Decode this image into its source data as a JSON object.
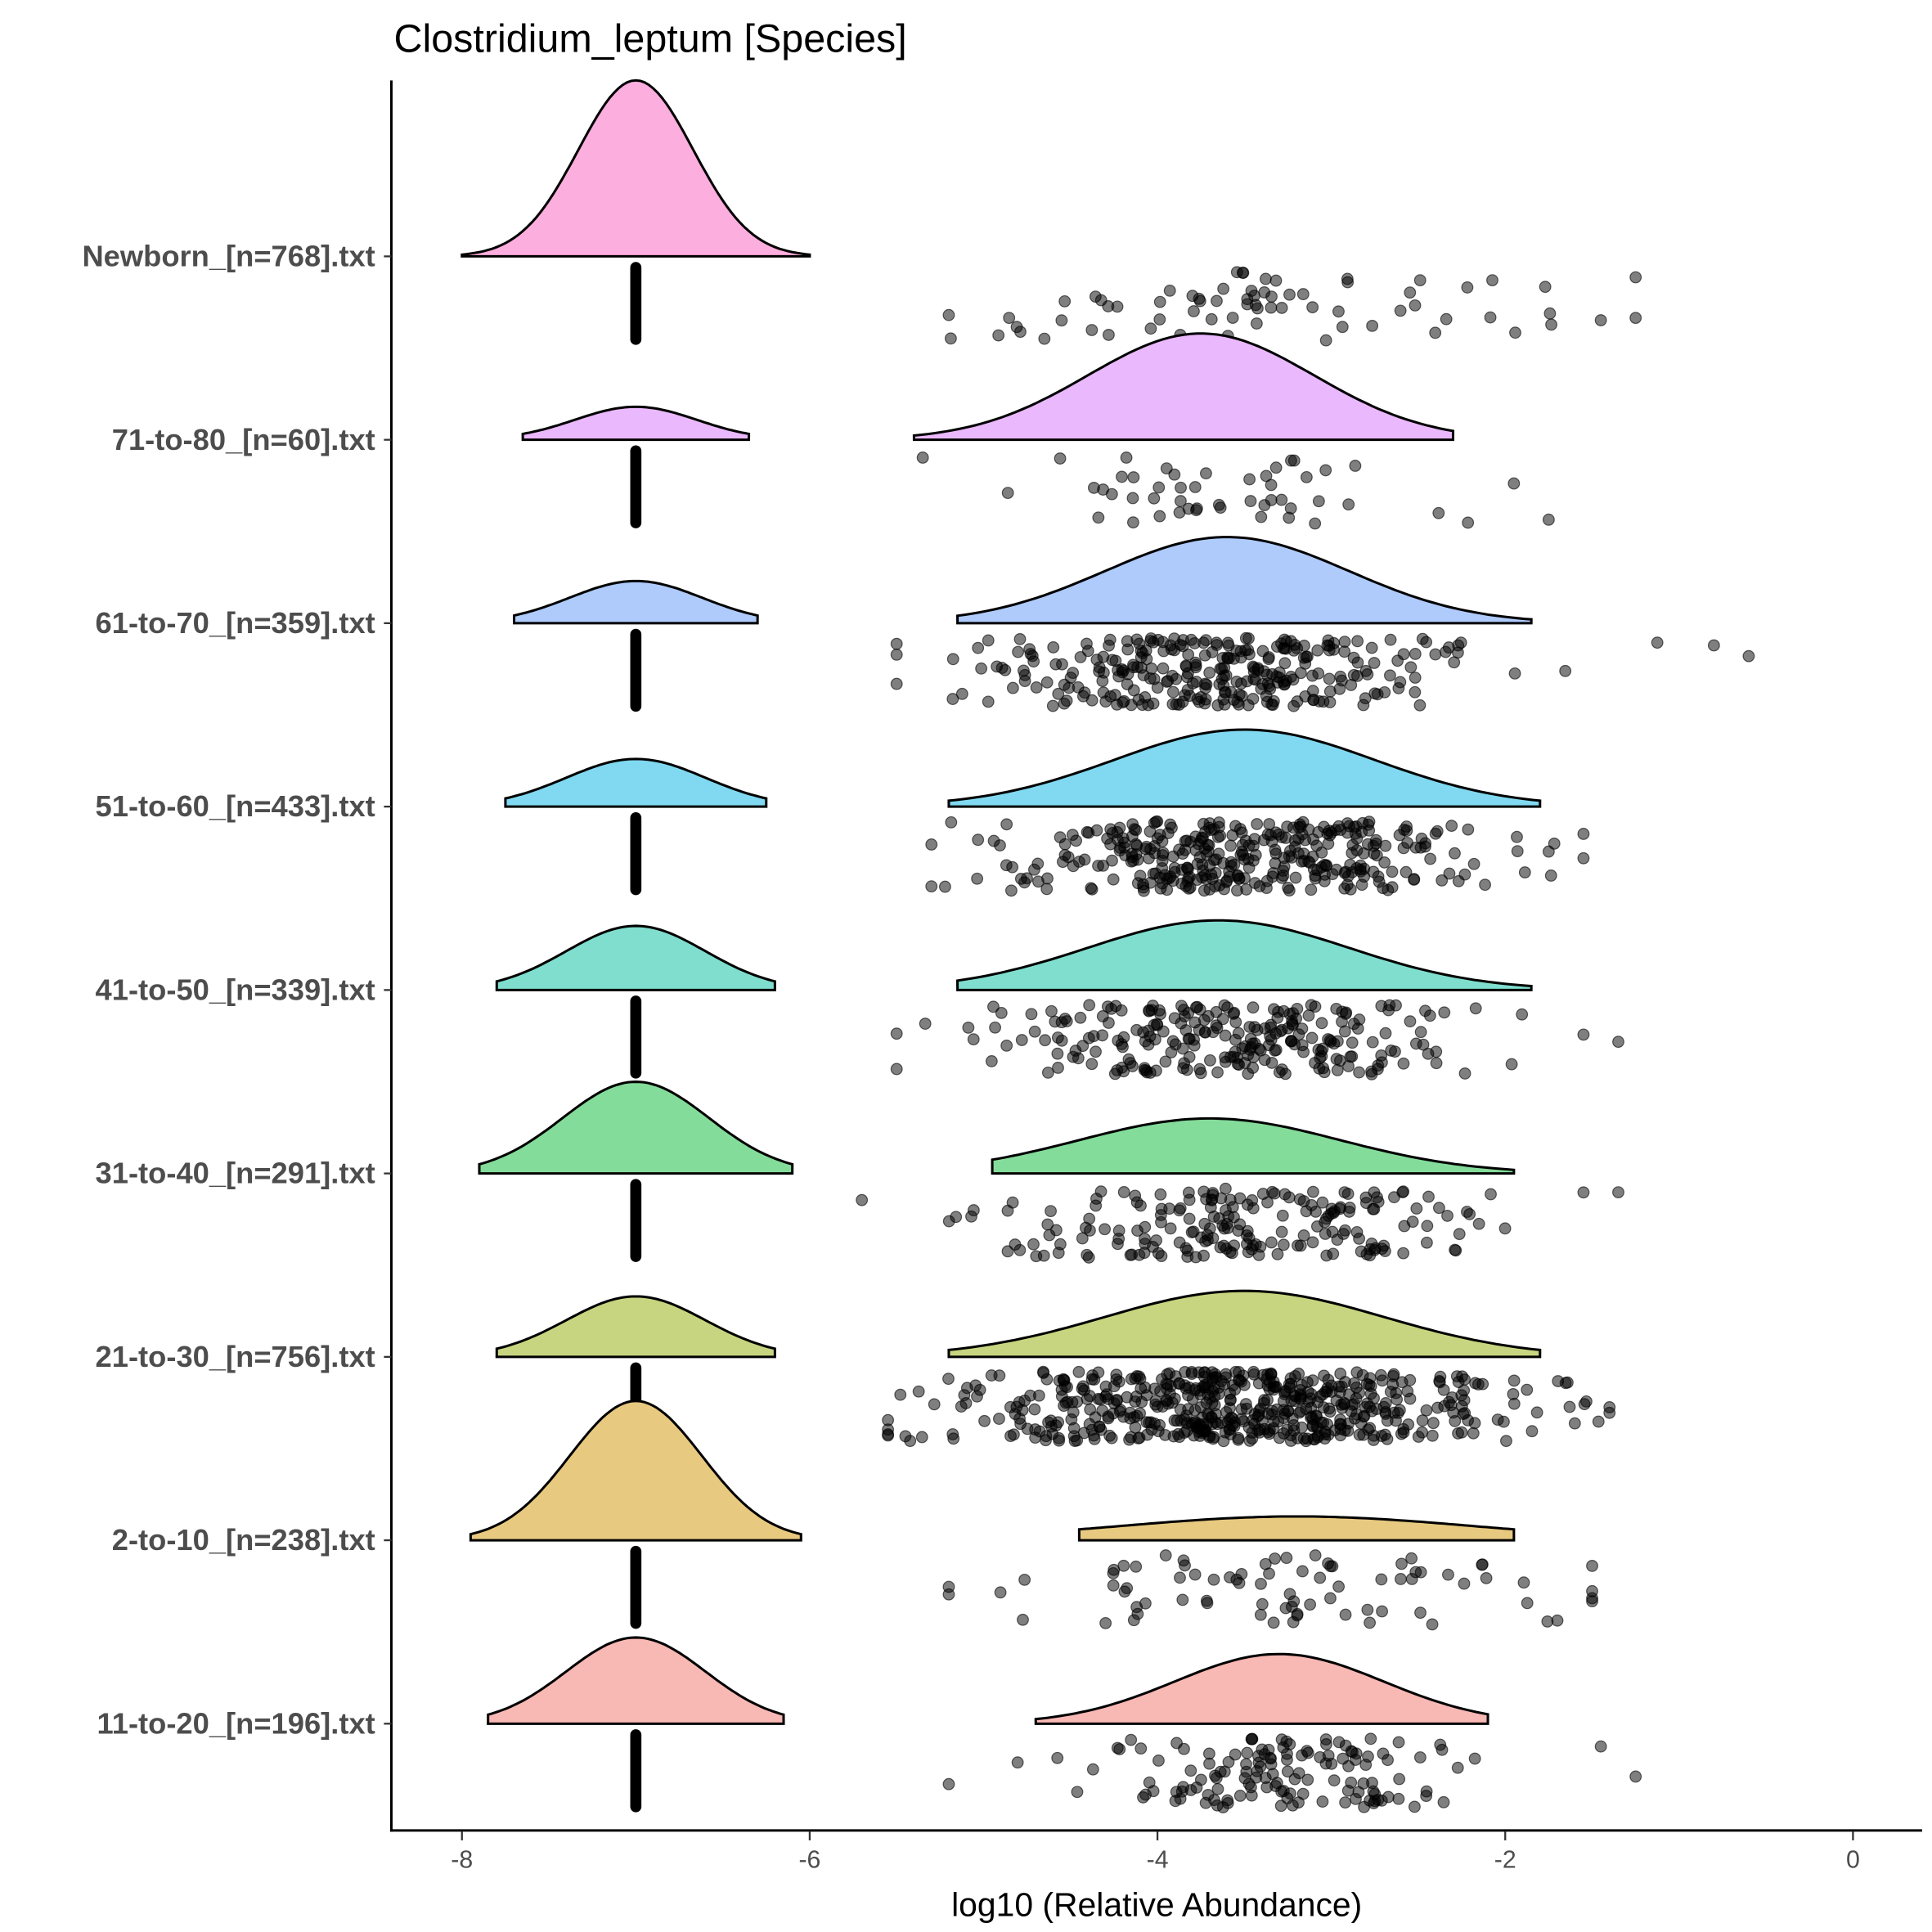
{
  "chart_data": {
    "type": "raincloud",
    "title": "Clostridium_leptum [Species]",
    "xlabel": "log10 (Relative Abundance)",
    "ylabel": "",
    "xlim": [
      -8.4,
      0.4
    ],
    "x_ticks": [
      "-8",
      "-6",
      "-4",
      "-2",
      "0"
    ],
    "x_tick_values": [
      -8,
      -6,
      -4,
      -2,
      0
    ],
    "zero_value": -7,
    "groups": [
      {
        "label": "Newborn_[n=768].txt",
        "color": "#FCAEDE",
        "left": {
          "mean": -7,
          "sd": 0.33,
          "min": -8,
          "max": -6,
          "height": 0.96
        },
        "right": null,
        "points": {
          "n": 70,
          "mean": -3.2,
          "sd": 1.0,
          "min": -5.2,
          "max": -1.25
        }
      },
      {
        "label": "71-to-80_[n=60].txt",
        "color": "#EAB8FC",
        "left": {
          "mean": -7,
          "sd": 0.35,
          "min": -7.65,
          "max": -6.35,
          "height": 0.18
        },
        "right": {
          "mean": -3.75,
          "sd": 0.65,
          "min": -5.4,
          "max": -2.3,
          "height": 0.58
        },
        "points": {
          "n": 50,
          "mean": -3.8,
          "sd": 0.6,
          "min": -5.35,
          "max": -1.75
        }
      },
      {
        "label": "61-to-70_[n=359].txt",
        "color": "#AFCBFC",
        "left": {
          "mean": -7,
          "sd": 0.38,
          "min": -7.7,
          "max": -6.3,
          "height": 0.23
        },
        "right": {
          "mean": -3.6,
          "sd": 0.7,
          "min": -5.15,
          "max": -1.85,
          "height": 0.47
        },
        "points": {
          "n": 300,
          "mean": -3.6,
          "sd": 0.65,
          "min": -5.5,
          "max": -0.6
        }
      },
      {
        "label": "51-to-60_[n=433].txt",
        "color": "#80D9F0",
        "left": {
          "mean": -7,
          "sd": 0.4,
          "min": -7.75,
          "max": -6.25,
          "height": 0.26
        },
        "right": {
          "mean": -3.5,
          "sd": 0.75,
          "min": -5.2,
          "max": -1.8,
          "height": 0.42
        },
        "points": {
          "n": 350,
          "mean": -3.6,
          "sd": 0.7,
          "min": -5.3,
          "max": -1.55
        }
      },
      {
        "label": "41-to-50_[n=339].txt",
        "color": "#80DECF",
        "left": {
          "mean": -7,
          "sd": 0.4,
          "min": -7.8,
          "max": -6.2,
          "height": 0.35
        },
        "right": {
          "mean": -3.65,
          "sd": 0.75,
          "min": -5.15,
          "max": -1.85,
          "height": 0.38
        },
        "points": {
          "n": 250,
          "mean": -3.6,
          "sd": 0.7,
          "min": -5.5,
          "max": -1.35
        }
      },
      {
        "label": "31-to-40_[n=291].txt",
        "color": "#84DC9A",
        "left": {
          "mean": -7,
          "sd": 0.42,
          "min": -7.9,
          "max": -6.1,
          "height": 0.5
        },
        "right": {
          "mean": -3.7,
          "sd": 0.75,
          "min": -4.95,
          "max": -1.95,
          "height": 0.3
        },
        "points": {
          "n": 200,
          "mean": -3.5,
          "sd": 0.7,
          "min": -5.7,
          "max": -1.35
        }
      },
      {
        "label": "21-to-30_[n=756].txt",
        "color": "#C8D580",
        "left": {
          "mean": -7,
          "sd": 0.4,
          "min": -7.8,
          "max": -6.2,
          "height": 0.33
        },
        "right": {
          "mean": -3.5,
          "sd": 0.8,
          "min": -5.2,
          "max": -1.8,
          "height": 0.36
        },
        "points": {
          "n": 550,
          "mean": -3.5,
          "sd": 0.75,
          "min": -5.55,
          "max": -1.4
        }
      },
      {
        "label": "2-to-10_[n=238].txt",
        "color": "#E8C980",
        "left": {
          "mean": -7,
          "sd": 0.38,
          "min": -7.95,
          "max": -6.05,
          "height": 0.76
        },
        "right": {
          "mean": -3.2,
          "sd": 1.0,
          "min": -4.45,
          "max": -1.95,
          "height": 0.13
        },
        "points": {
          "n": 80,
          "mean": -3.2,
          "sd": 0.7,
          "min": -5.2,
          "max": -1.5
        }
      },
      {
        "label": "11-to-20_[n=196].txt",
        "color": "#F8B8B4",
        "left": {
          "mean": -7,
          "sd": 0.4,
          "min": -7.85,
          "max": -6.15,
          "height": 0.47
        },
        "right": {
          "mean": -3.3,
          "sd": 0.6,
          "min": -4.7,
          "max": -2.1,
          "height": 0.38
        },
        "points": {
          "n": 140,
          "mean": -3.3,
          "sd": 0.5,
          "min": -5.2,
          "max": -1.25
        }
      }
    ]
  }
}
